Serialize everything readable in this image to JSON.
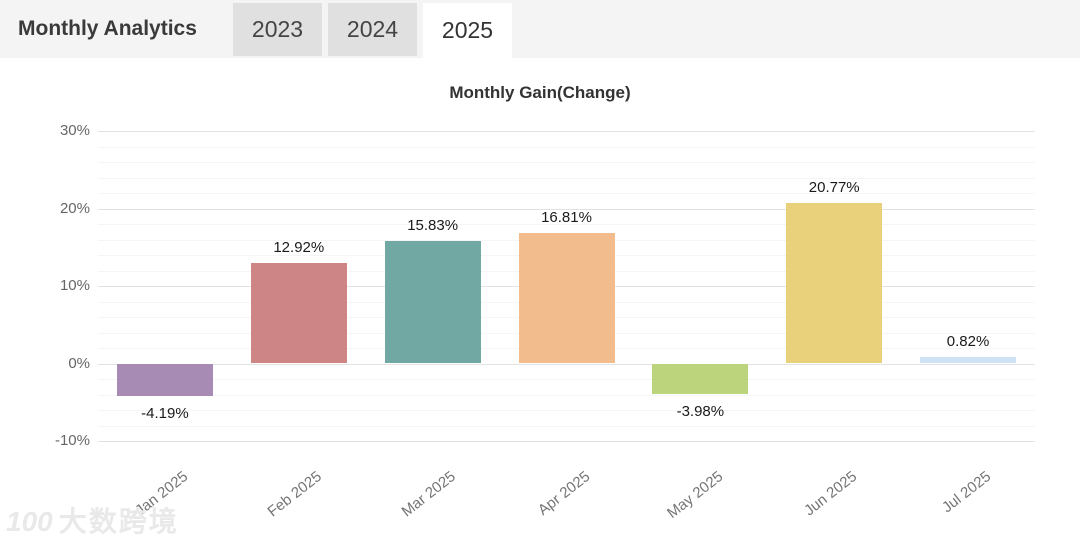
{
  "header": {
    "title": "Monthly Analytics",
    "tabs": [
      {
        "label": "2023",
        "active": false
      },
      {
        "label": "2024",
        "active": false
      },
      {
        "label": "2025",
        "active": true
      }
    ]
  },
  "chart_data": {
    "type": "bar",
    "title": "Monthly Gain(Change)",
    "categories": [
      "Jan 2025",
      "Feb 2025",
      "Mar 2025",
      "Apr 2025",
      "May 2025",
      "Jun 2025",
      "Jul 2025"
    ],
    "values": [
      -4.19,
      12.92,
      15.83,
      16.81,
      -3.98,
      20.77,
      0.82
    ],
    "value_labels": [
      "-4.19%",
      "12.92%",
      "15.83%",
      "16.81%",
      "-3.98%",
      "20.77%",
      "0.82%"
    ],
    "bar_colors": [
      "#a88bb4",
      "#cd8685",
      "#72a8a4",
      "#f2bc8d",
      "#bcd57c",
      "#e9d17b",
      "#cfe3f4"
    ],
    "ylim": [
      -10,
      30
    ],
    "ytick_step": 10,
    "minor_grid_step": 2,
    "ytick_suffix": "%",
    "grid": true,
    "legend": "none",
    "xlabel": "",
    "ylabel": ""
  },
  "watermark": {
    "logo": "100",
    "text": "大数跨境"
  }
}
